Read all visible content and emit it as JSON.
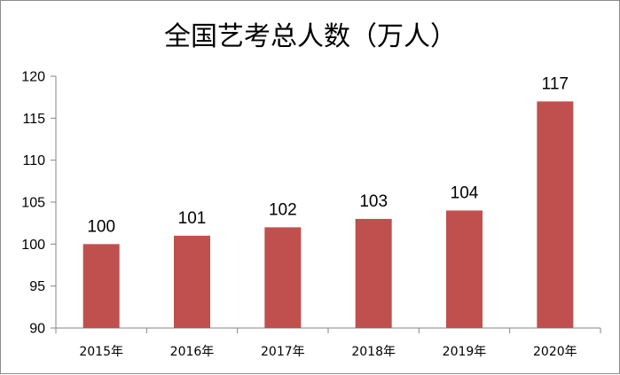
{
  "chart_data": {
    "type": "bar",
    "title": "全国艺考总人数（万人）",
    "categories": [
      "2015年",
      "2016年",
      "2017年",
      "2018年",
      "2019年",
      "2020年"
    ],
    "values": [
      100,
      101,
      102,
      103,
      104,
      117
    ],
    "ylim": [
      90,
      120
    ],
    "yticks": [
      90,
      95,
      100,
      105,
      110,
      115,
      120
    ],
    "grid": false,
    "legend": "none",
    "bar_color": "#c0504d",
    "axis_color": "#868686"
  }
}
